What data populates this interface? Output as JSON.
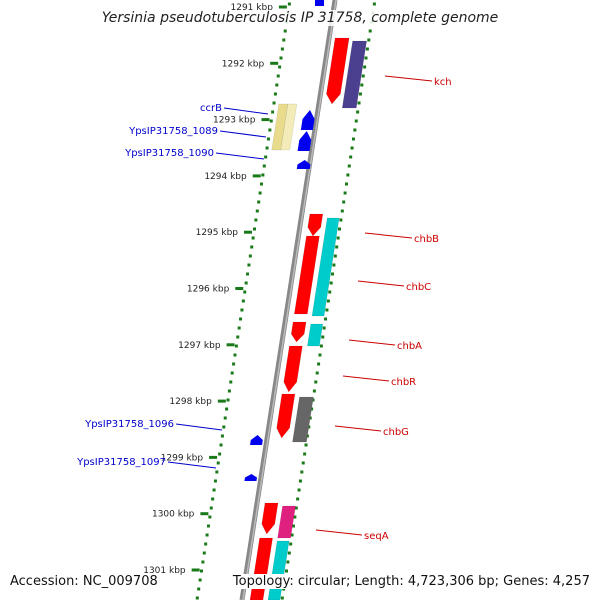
{
  "title": "Yersinia pseudotuberculosis IP 31758, complete genome",
  "accession_text": "Accession: NC_009708",
  "summary_text": "Topology: circular; Length: 4,723,306 bp; Genes: 4,257",
  "colors": {
    "backbone": "#888888",
    "tick": "#1a7a1a",
    "left_label": "#0000cc",
    "right_label": "#cc0000",
    "red": "#ff0000",
    "cyan": "#00cccc",
    "purple": "#4b3f8f",
    "yellow": "#e8dc8c",
    "blue": "#0000ee",
    "gray": "#666666",
    "magenta": "#e0207f"
  },
  "chart_data": {
    "type": "genome-map",
    "units": "kbp",
    "scale_labels": [
      "1291 kbp",
      "1292 kbp",
      "1293 kbp",
      "1294 kbp",
      "1295 kbp",
      "1296 kbp",
      "1297 kbp",
      "1298 kbp",
      "1299 kbp",
      "1300 kbp",
      "1301 kbp"
    ],
    "left_genes": [
      {
        "name": "ccrB",
        "color": "blue"
      },
      {
        "name": "YpsIP31758_1089",
        "color": "blue"
      },
      {
        "name": "YpsIP31758_1090",
        "color": "blue"
      },
      {
        "name": "YpsIP31758_1096",
        "color": "blue"
      },
      {
        "name": "YpsIP31758_1097",
        "color": "blue"
      }
    ],
    "right_genes": [
      {
        "name": "kch",
        "color": "red"
      },
      {
        "name": "chbB",
        "color": "red"
      },
      {
        "name": "chbC",
        "color": "red"
      },
      {
        "name": "chbA",
        "color": "red"
      },
      {
        "name": "chbR",
        "color": "red"
      },
      {
        "name": "chbG",
        "color": "red"
      },
      {
        "name": "seqA",
        "color": "red"
      }
    ]
  }
}
